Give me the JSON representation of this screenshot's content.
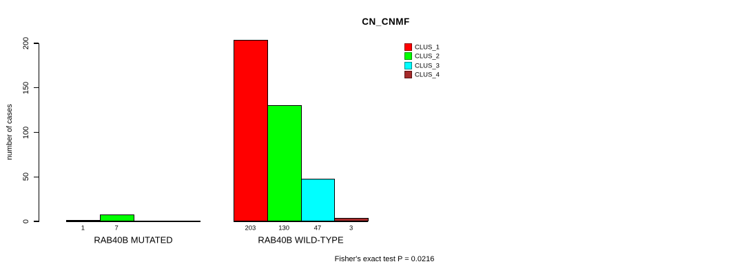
{
  "title": "CN_CNMF",
  "chart_data": {
    "type": "bar",
    "title": "CN_CNMF",
    "ylabel": "number of cases",
    "xlabel": "",
    "ylim": [
      0,
      200
    ],
    "yticks": [
      0,
      50,
      100,
      150,
      200
    ],
    "grid": false,
    "legend_position": "top-right-inside",
    "legend": [
      {
        "name": "CLUS_1",
        "color": "#FF0000"
      },
      {
        "name": "CLUS_2",
        "color": "#00FF00"
      },
      {
        "name": "CLUS_3",
        "color": "#00FFFF"
      },
      {
        "name": "CLUS_4",
        "color": "#A52A2A"
      }
    ],
    "categories": [
      "RAB40B MUTATED",
      "RAB40B WILD-TYPE"
    ],
    "series": [
      {
        "name": "CLUS_1",
        "values": [
          1,
          203
        ]
      },
      {
        "name": "CLUS_2",
        "values": [
          7,
          130
        ]
      },
      {
        "name": "CLUS_3",
        "values": [
          0,
          47
        ]
      },
      {
        "name": "CLUS_4",
        "values": [
          0,
          3
        ]
      }
    ],
    "groups": [
      {
        "label": "RAB40B MUTATED",
        "values": [
          1,
          7,
          0,
          0
        ],
        "bar_labels": [
          "1",
          "7",
          "",
          ""
        ]
      },
      {
        "label": "RAB40B WILD-TYPE",
        "values": [
          203,
          130,
          47,
          3
        ],
        "bar_labels": [
          "203",
          "130",
          "47",
          "3"
        ]
      }
    ],
    "annotation": "Fisher's exact test P = 0.0216"
  }
}
